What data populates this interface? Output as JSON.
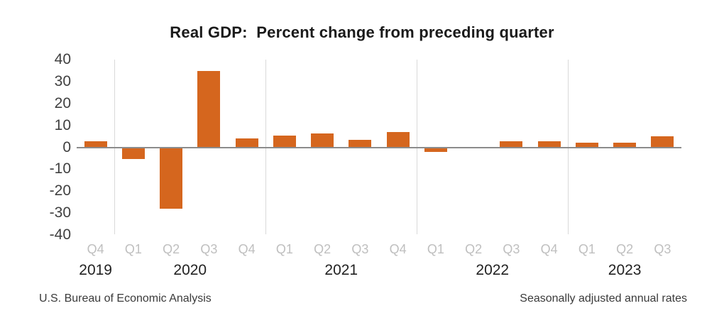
{
  "title": "Real GDP:  Percent change from preceding quarter",
  "footer": {
    "left": "U.S. Bureau of Economic Analysis",
    "right": "Seasonally adjusted annual rates"
  },
  "colors": {
    "bar": "#D5661E",
    "gridline": "#D9D9D9",
    "axis_line": "#8C8C8C",
    "title_text": "#1A1A1A",
    "ytick_text": "#404040",
    "quarter_label_text": "#BFBFBF",
    "year_label_text": "#222222",
    "footer_text": "#3A3A3A",
    "background": "#FFFFFF"
  },
  "chart_data": {
    "type": "bar",
    "title": "Real GDP:  Percent change from preceding quarter",
    "xlabel": "",
    "ylabel": "",
    "ylim": [
      -40,
      40
    ],
    "yticks": [
      40,
      30,
      20,
      10,
      0,
      -10,
      -20,
      -30,
      -40
    ],
    "grid": "vertical year-boundary gridlines only",
    "legend": "none",
    "series_name": "Real GDP percent change from preceding quarter (seasonally adjusted annual rate)",
    "categories": [
      "2019 Q4",
      "2020 Q1",
      "2020 Q2",
      "2020 Q3",
      "2020 Q4",
      "2021 Q1",
      "2021 Q2",
      "2021 Q3",
      "2021 Q4",
      "2022 Q1",
      "2022 Q2",
      "2022 Q3",
      "2022 Q4",
      "2023 Q1",
      "2023 Q2",
      "2023 Q3"
    ],
    "quarter_labels": [
      "Q4",
      "Q1",
      "Q2",
      "Q3",
      "Q4",
      "Q1",
      "Q2",
      "Q3",
      "Q4",
      "Q1",
      "Q2",
      "Q3",
      "Q4",
      "Q1",
      "Q2",
      "Q3"
    ],
    "values": [
      2.6,
      -5.3,
      -28.0,
      34.8,
      4.2,
      5.2,
      6.2,
      3.3,
      7.0,
      -2.0,
      -0.6,
      2.7,
      2.6,
      2.2,
      2.1,
      4.9
    ],
    "year_groups": [
      {
        "label": "2019",
        "count": 1
      },
      {
        "label": "2020",
        "count": 4
      },
      {
        "label": "2021",
        "count": 4
      },
      {
        "label": "2022",
        "count": 4
      },
      {
        "label": "2023",
        "count": 3
      }
    ]
  }
}
